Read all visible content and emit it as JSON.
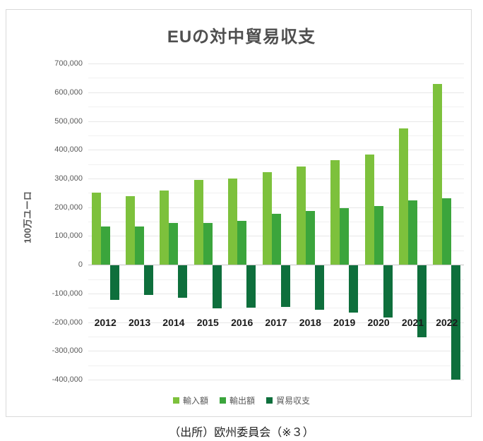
{
  "title": "EUの対中貿易収支",
  "caption": "（出所）欧州委員会（※３）",
  "colors": {
    "imports": "#7DC13C",
    "exports": "#3BA53C",
    "balance": "#0E6F3C",
    "title_text": "#4F4F4F",
    "axis_text": "#595959",
    "year_label_text": "#1A1A1A",
    "gridline": "#E7E7E7",
    "zero_line": "#C4C4C4",
    "border": "#D9D9D9"
  },
  "chart_data": {
    "type": "bar",
    "title": "EUの対中貿易収支",
    "xlabel": "",
    "ylabel": "100万ユーロ",
    "ylim": [
      -400000,
      700000
    ],
    "ytick_interval": 100000,
    "gridline_interval": 50000,
    "grid": true,
    "legend_position": "bottom",
    "categories": [
      "2012",
      "2013",
      "2014",
      "2015",
      "2016",
      "2017",
      "2018",
      "2019",
      "2020",
      "2021",
      "2022"
    ],
    "series": [
      {
        "name": "輸入額",
        "key": "imports",
        "color": "#7DC13C",
        "values": [
          251000,
          238000,
          258000,
          296000,
          299000,
          322000,
          342000,
          363000,
          384000,
          474000,
          628000
        ]
      },
      {
        "name": "輸出額",
        "key": "exports",
        "color": "#3BA53C",
        "values": [
          132000,
          134000,
          145000,
          146000,
          153000,
          177000,
          187000,
          198000,
          203000,
          223000,
          231000
        ]
      },
      {
        "name": "貿易収支",
        "key": "balance",
        "color": "#0E6F3C",
        "values": [
          -119000,
          -104000,
          -113000,
          -150000,
          -146000,
          -145000,
          -155000,
          -165000,
          -181000,
          -251000,
          -397000
        ]
      }
    ]
  }
}
